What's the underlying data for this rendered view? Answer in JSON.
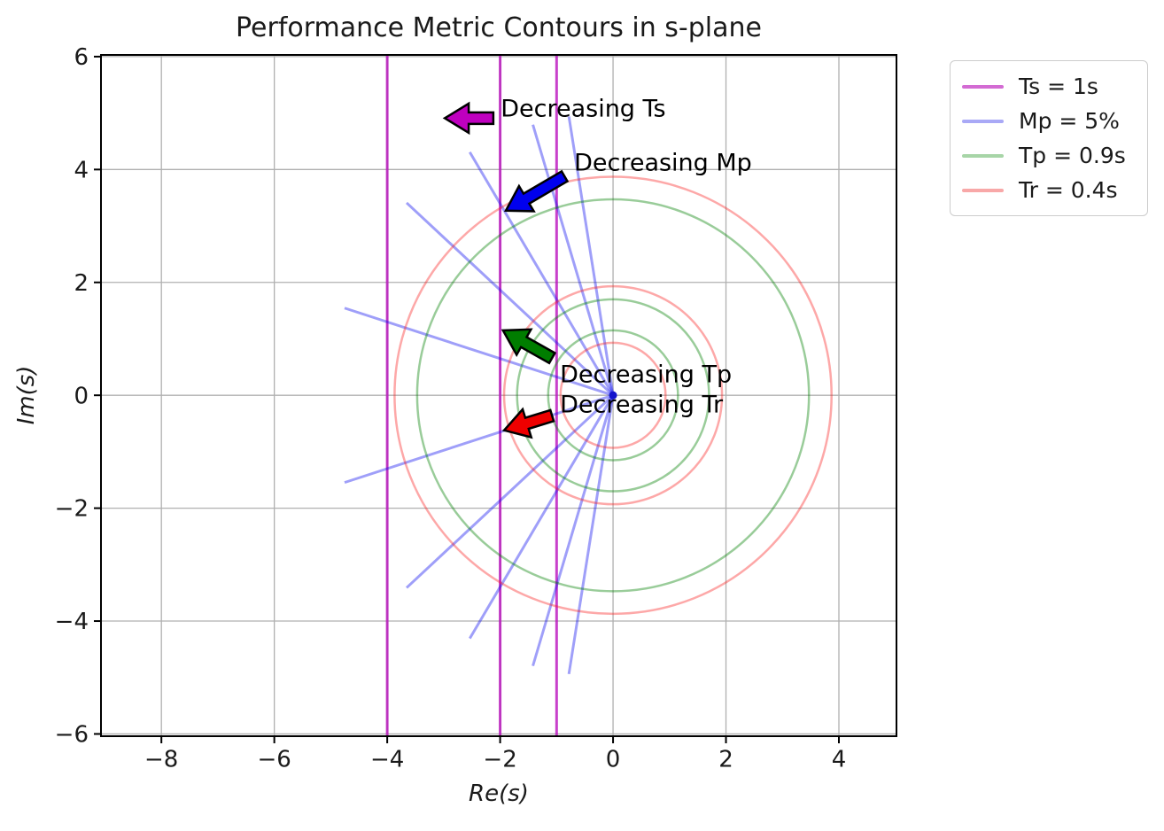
{
  "title": "Performance Metric Contours in s-plane",
  "legend": {
    "items": [
      {
        "label": "Ts = 1s",
        "color": "#d36bd3"
      },
      {
        "label": "Mp = 5%",
        "color": "#a9a9f6"
      },
      {
        "label": "Tp = 0.9s",
        "color": "#a7d5a7"
      },
      {
        "label": "Tr = 0.4s",
        "color": "#f8a8a8"
      }
    ]
  },
  "chart_data": {
    "type": "line",
    "title": "Performance Metric Contours in s-plane",
    "xlabel": "Re(s)",
    "ylabel": "Im(s)",
    "xlim": [
      -9.07,
      5.02
    ],
    "ylim": [
      -6.04,
      6.03
    ],
    "xticks": [
      -8,
      -6,
      -4,
      -2,
      0,
      2,
      4
    ],
    "yticks": [
      -6,
      -4,
      -2,
      0,
      2,
      4,
      6
    ],
    "grid": true,
    "legend_position": "upper right, outside axes",
    "style": {
      "grid_color": "#b0b0b0",
      "spine_color": "#000000",
      "tick_label_color": "#1a1a1a",
      "background": "#ffffff"
    },
    "series": [
      {
        "name": "Ts = 1s",
        "kind": "vertical-lines",
        "x": [
          -4,
          -2,
          -1
        ],
        "color": "rgba(184,10,188,0.78)",
        "linewidth": 3
      },
      {
        "name": "Mp = 5%",
        "kind": "rays-from-origin",
        "origin": [
          0,
          0
        ],
        "length": 5.0,
        "angles_from_neg_real_deg": [
          18,
          43,
          59.5,
          73.5,
          81
        ],
        "mirrored_below_axis": true,
        "color": "rgba(15,15,240,0.4)",
        "linewidth": 3
      },
      {
        "name": "Tp = 0.9s",
        "kind": "circles",
        "center": [
          0,
          0
        ],
        "radii": [
          1.15,
          1.7,
          3.47
        ],
        "color": "rgba(0,128,0,0.4)",
        "linewidth": 2.5
      },
      {
        "name": "Tr = 0.4s",
        "kind": "circles",
        "center": [
          0,
          0
        ],
        "radii": [
          0.93,
          1.93,
          3.87
        ],
        "color": "rgba(250,25,25,0.38)",
        "linewidth": 2.5
      }
    ],
    "origin_marker": {
      "x": 0,
      "y": 0,
      "color": "#1515cc",
      "radius_px": 4.5
    },
    "annotations": [
      {
        "text": "Decreasing Ts",
        "text_xy": [
          -1.99,
          5.08
        ],
        "arrow_tail_xy": [
          -2.12,
          4.91
        ],
        "arrow_tip_xy": [
          -2.98,
          4.91
        ],
        "arrow_color": "#bf00bf"
      },
      {
        "text": "Decreasing Mp",
        "text_xy": [
          -0.69,
          4.11
        ],
        "arrow_tail_xy": [
          -0.86,
          3.88
        ],
        "arrow_tip_xy": [
          -1.9,
          3.27
        ],
        "arrow_color": "#0000ee"
      },
      {
        "text": "Decreasing Tp",
        "text_xy": [
          -0.94,
          0.37
        ],
        "arrow_tail_xy": [
          -1.08,
          0.66
        ],
        "arrow_tip_xy": [
          -1.95,
          1.15
        ],
        "arrow_color": "#007d00"
      },
      {
        "text": "Decreasing Tr",
        "text_xy": [
          -0.94,
          -0.17
        ],
        "arrow_tail_xy": [
          -1.08,
          -0.36
        ],
        "arrow_tip_xy": [
          -1.93,
          -0.62
        ],
        "arrow_color": "#ee0000"
      }
    ]
  }
}
